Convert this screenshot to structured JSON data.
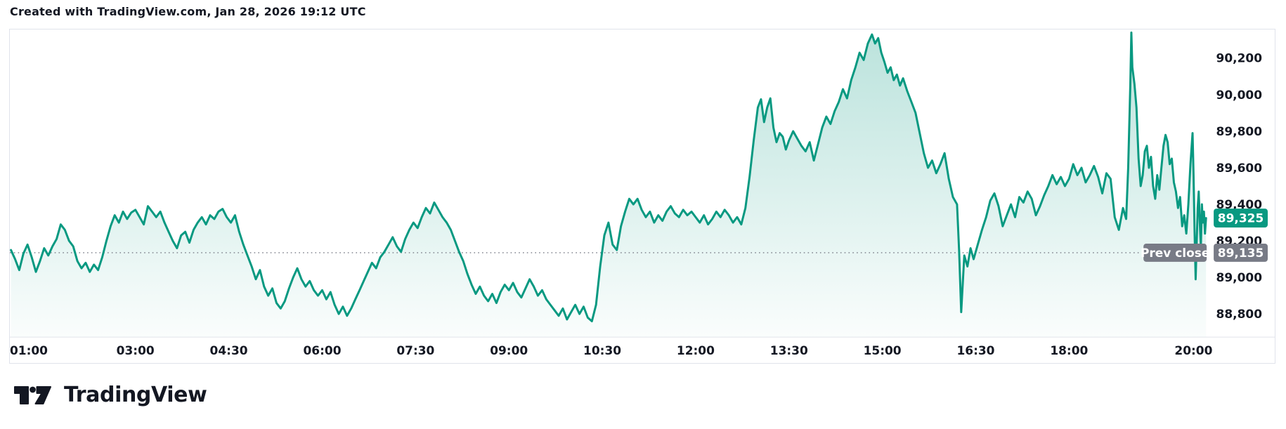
{
  "header": {
    "attribution": "Created with TradingView.com, Jan 28, 2026 19:12 UTC"
  },
  "footer": {
    "brand": "TradingView"
  },
  "colors": {
    "line": "#089981",
    "area_top": "rgba(8,153,129,0.28)",
    "area_bottom": "rgba(8,153,129,0.02)",
    "current_badge_bg": "#089981",
    "prev_close_badge_bg": "#787b86",
    "axis_text": "#131722",
    "border": "#e0e3eb",
    "dotted_line": "#787b86",
    "badge_text": "#ffffff"
  },
  "chart_data": {
    "type": "area",
    "title": "",
    "xlabel": "",
    "ylabel": "",
    "time_range": "01:00 - 20:12",
    "ylim": [
      88676,
      90357
    ],
    "grid": false,
    "legend": "none",
    "x_ticks": [
      "01:00",
      "03:00",
      "04:30",
      "06:00",
      "07:30",
      "09:00",
      "10:30",
      "12:00",
      "13:30",
      "15:00",
      "16:30",
      "18:00",
      "20:00"
    ],
    "y_ticks": [
      {
        "value": 88800,
        "label": "88,800"
      },
      {
        "value": 89000,
        "label": "89,000"
      },
      {
        "value": 89200,
        "label": "89,200"
      },
      {
        "value": 89400,
        "label": "89,400"
      },
      {
        "value": 89600,
        "label": "89,600"
      },
      {
        "value": 89800,
        "label": "89,800"
      },
      {
        "value": 90000,
        "label": "90,000"
      },
      {
        "value": 90200,
        "label": "90,200"
      }
    ],
    "last_price": {
      "value": 89325,
      "label": "89,325"
    },
    "prev_close": {
      "value": 89135,
      "label": "89,135",
      "title": "Prev close"
    },
    "points": [
      [
        "01:00",
        89150
      ],
      [
        "01:04",
        89100
      ],
      [
        "01:08",
        89040
      ],
      [
        "01:12",
        89130
      ],
      [
        "01:16",
        89180
      ],
      [
        "01:20",
        89110
      ],
      [
        "01:24",
        89030
      ],
      [
        "01:28",
        89090
      ],
      [
        "01:32",
        89160
      ],
      [
        "01:36",
        89120
      ],
      [
        "01:40",
        89170
      ],
      [
        "01:44",
        89210
      ],
      [
        "01:48",
        89290
      ],
      [
        "01:52",
        89260
      ],
      [
        "01:56",
        89200
      ],
      [
        "02:00",
        89170
      ],
      [
        "02:04",
        89090
      ],
      [
        "02:08",
        89050
      ],
      [
        "02:12",
        89080
      ],
      [
        "02:16",
        89030
      ],
      [
        "02:20",
        89070
      ],
      [
        "02:24",
        89040
      ],
      [
        "02:28",
        89110
      ],
      [
        "02:32",
        89200
      ],
      [
        "02:36",
        89280
      ],
      [
        "02:40",
        89340
      ],
      [
        "02:44",
        89300
      ],
      [
        "02:48",
        89360
      ],
      [
        "02:52",
        89320
      ],
      [
        "02:56",
        89355
      ],
      [
        "03:00",
        89370
      ],
      [
        "03:04",
        89330
      ],
      [
        "03:08",
        89290
      ],
      [
        "03:12",
        89390
      ],
      [
        "03:16",
        89360
      ],
      [
        "03:20",
        89330
      ],
      [
        "03:24",
        89360
      ],
      [
        "03:28",
        89300
      ],
      [
        "03:32",
        89250
      ],
      [
        "03:36",
        89200
      ],
      [
        "03:40",
        89160
      ],
      [
        "03:44",
        89230
      ],
      [
        "03:48",
        89250
      ],
      [
        "03:52",
        89190
      ],
      [
        "03:56",
        89260
      ],
      [
        "04:00",
        89300
      ],
      [
        "04:04",
        89330
      ],
      [
        "04:08",
        89290
      ],
      [
        "04:12",
        89340
      ],
      [
        "04:16",
        89320
      ],
      [
        "04:20",
        89360
      ],
      [
        "04:24",
        89375
      ],
      [
        "04:28",
        89330
      ],
      [
        "04:32",
        89300
      ],
      [
        "04:36",
        89340
      ],
      [
        "04:40",
        89250
      ],
      [
        "04:44",
        89180
      ],
      [
        "04:48",
        89120
      ],
      [
        "04:52",
        89060
      ],
      [
        "04:56",
        88990
      ],
      [
        "05:00",
        89040
      ],
      [
        "05:04",
        88950
      ],
      [
        "05:08",
        88900
      ],
      [
        "05:12",
        88940
      ],
      [
        "05:16",
        88860
      ],
      [
        "05:20",
        88830
      ],
      [
        "05:24",
        88870
      ],
      [
        "05:28",
        88940
      ],
      [
        "05:32",
        89000
      ],
      [
        "05:36",
        89050
      ],
      [
        "05:40",
        88990
      ],
      [
        "05:44",
        88950
      ],
      [
        "05:48",
        88980
      ],
      [
        "05:52",
        88930
      ],
      [
        "05:56",
        88900
      ],
      [
        "06:00",
        88930
      ],
      [
        "06:04",
        88880
      ],
      [
        "06:08",
        88920
      ],
      [
        "06:12",
        88850
      ],
      [
        "06:16",
        88800
      ],
      [
        "06:20",
        88840
      ],
      [
        "06:24",
        88790
      ],
      [
        "06:28",
        88830
      ],
      [
        "06:32",
        88880
      ],
      [
        "06:36",
        88930
      ],
      [
        "06:40",
        88980
      ],
      [
        "06:44",
        89030
      ],
      [
        "06:48",
        89080
      ],
      [
        "06:52",
        89050
      ],
      [
        "06:56",
        89110
      ],
      [
        "07:00",
        89140
      ],
      [
        "07:04",
        89180
      ],
      [
        "07:08",
        89220
      ],
      [
        "07:12",
        89170
      ],
      [
        "07:16",
        89140
      ],
      [
        "07:20",
        89210
      ],
      [
        "07:24",
        89260
      ],
      [
        "07:28",
        89300
      ],
      [
        "07:32",
        89270
      ],
      [
        "07:36",
        89330
      ],
      [
        "07:40",
        89380
      ],
      [
        "07:44",
        89350
      ],
      [
        "07:48",
        89410
      ],
      [
        "07:52",
        89370
      ],
      [
        "07:56",
        89330
      ],
      [
        "08:00",
        89300
      ],
      [
        "08:04",
        89260
      ],
      [
        "08:08",
        89200
      ],
      [
        "08:12",
        89140
      ],
      [
        "08:16",
        89090
      ],
      [
        "08:20",
        89020
      ],
      [
        "08:24",
        88960
      ],
      [
        "08:28",
        88910
      ],
      [
        "08:32",
        88950
      ],
      [
        "08:36",
        88900
      ],
      [
        "08:40",
        88870
      ],
      [
        "08:44",
        88910
      ],
      [
        "08:48",
        88860
      ],
      [
        "08:52",
        88920
      ],
      [
        "08:56",
        88960
      ],
      [
        "09:00",
        88930
      ],
      [
        "09:04",
        88970
      ],
      [
        "09:08",
        88920
      ],
      [
        "09:12",
        88890
      ],
      [
        "09:16",
        88940
      ],
      [
        "09:20",
        88990
      ],
      [
        "09:24",
        88950
      ],
      [
        "09:28",
        88900
      ],
      [
        "09:32",
        88930
      ],
      [
        "09:36",
        88880
      ],
      [
        "09:40",
        88850
      ],
      [
        "09:44",
        88820
      ],
      [
        "09:48",
        88790
      ],
      [
        "09:52",
        88830
      ],
      [
        "09:56",
        88770
      ],
      [
        "10:00",
        88810
      ],
      [
        "10:04",
        88850
      ],
      [
        "10:08",
        88800
      ],
      [
        "10:12",
        88840
      ],
      [
        "10:16",
        88780
      ],
      [
        "10:20",
        88760
      ],
      [
        "10:24",
        88850
      ],
      [
        "10:28",
        89060
      ],
      [
        "10:32",
        89230
      ],
      [
        "10:36",
        89300
      ],
      [
        "10:40",
        89180
      ],
      [
        "10:44",
        89150
      ],
      [
        "10:48",
        89280
      ],
      [
        "10:52",
        89360
      ],
      [
        "10:56",
        89430
      ],
      [
        "11:00",
        89400
      ],
      [
        "11:04",
        89430
      ],
      [
        "11:08",
        89370
      ],
      [
        "11:12",
        89330
      ],
      [
        "11:16",
        89360
      ],
      [
        "11:20",
        89300
      ],
      [
        "11:24",
        89340
      ],
      [
        "11:28",
        89310
      ],
      [
        "11:32",
        89360
      ],
      [
        "11:36",
        89390
      ],
      [
        "11:40",
        89350
      ],
      [
        "11:44",
        89330
      ],
      [
        "11:48",
        89370
      ],
      [
        "11:52",
        89340
      ],
      [
        "11:56",
        89360
      ],
      [
        "12:00",
        89330
      ],
      [
        "12:04",
        89300
      ],
      [
        "12:08",
        89340
      ],
      [
        "12:12",
        89290
      ],
      [
        "12:16",
        89320
      ],
      [
        "12:20",
        89360
      ],
      [
        "12:24",
        89330
      ],
      [
        "12:28",
        89370
      ],
      [
        "12:32",
        89340
      ],
      [
        "12:36",
        89300
      ],
      [
        "12:40",
        89330
      ],
      [
        "12:44",
        89290
      ],
      [
        "12:48",
        89380
      ],
      [
        "12:52",
        89550
      ],
      [
        "12:56",
        89750
      ],
      [
        "13:00",
        89930
      ],
      [
        "13:03",
        89975
      ],
      [
        "13:06",
        89850
      ],
      [
        "13:09",
        89930
      ],
      [
        "13:12",
        89980
      ],
      [
        "13:15",
        89820
      ],
      [
        "13:18",
        89740
      ],
      [
        "13:21",
        89790
      ],
      [
        "13:24",
        89770
      ],
      [
        "13:27",
        89700
      ],
      [
        "13:30",
        89750
      ],
      [
        "13:34",
        89800
      ],
      [
        "13:38",
        89760
      ],
      [
        "13:42",
        89720
      ],
      [
        "13:46",
        89690
      ],
      [
        "13:50",
        89740
      ],
      [
        "13:54",
        89640
      ],
      [
        "13:58",
        89730
      ],
      [
        "14:02",
        89820
      ],
      [
        "14:06",
        89880
      ],
      [
        "14:10",
        89840
      ],
      [
        "14:14",
        89910
      ],
      [
        "14:18",
        89960
      ],
      [
        "14:22",
        90030
      ],
      [
        "14:26",
        89980
      ],
      [
        "14:30",
        90080
      ],
      [
        "14:34",
        90150
      ],
      [
        "14:38",
        90230
      ],
      [
        "14:42",
        90190
      ],
      [
        "14:46",
        90280
      ],
      [
        "14:50",
        90330
      ],
      [
        "14:53",
        90280
      ],
      [
        "14:56",
        90310
      ],
      [
        "14:59",
        90230
      ],
      [
        "15:02",
        90180
      ],
      [
        "15:05",
        90120
      ],
      [
        "15:08",
        90150
      ],
      [
        "15:11",
        90080
      ],
      [
        "15:14",
        90110
      ],
      [
        "15:17",
        90050
      ],
      [
        "15:20",
        90090
      ],
      [
        "15:24",
        90020
      ],
      [
        "15:28",
        89960
      ],
      [
        "15:32",
        89900
      ],
      [
        "15:36",
        89790
      ],
      [
        "15:40",
        89680
      ],
      [
        "15:44",
        89600
      ],
      [
        "15:48",
        89640
      ],
      [
        "15:52",
        89570
      ],
      [
        "15:56",
        89620
      ],
      [
        "16:00",
        89680
      ],
      [
        "16:04",
        89540
      ],
      [
        "16:08",
        89440
      ],
      [
        "16:12",
        89400
      ],
      [
        "16:14",
        89150
      ],
      [
        "16:16",
        88810
      ],
      [
        "16:19",
        89120
      ],
      [
        "16:22",
        89060
      ],
      [
        "16:25",
        89160
      ],
      [
        "16:28",
        89100
      ],
      [
        "16:32",
        89180
      ],
      [
        "16:36",
        89260
      ],
      [
        "16:40",
        89330
      ],
      [
        "16:44",
        89420
      ],
      [
        "16:48",
        89460
      ],
      [
        "16:52",
        89390
      ],
      [
        "16:56",
        89280
      ],
      [
        "17:00",
        89340
      ],
      [
        "17:04",
        89400
      ],
      [
        "17:08",
        89330
      ],
      [
        "17:12",
        89440
      ],
      [
        "17:16",
        89410
      ],
      [
        "17:20",
        89470
      ],
      [
        "17:24",
        89430
      ],
      [
        "17:28",
        89340
      ],
      [
        "17:32",
        89390
      ],
      [
        "17:36",
        89450
      ],
      [
        "17:40",
        89500
      ],
      [
        "17:44",
        89560
      ],
      [
        "17:48",
        89510
      ],
      [
        "17:52",
        89550
      ],
      [
        "17:56",
        89500
      ],
      [
        "18:00",
        89540
      ],
      [
        "18:04",
        89620
      ],
      [
        "18:08",
        89560
      ],
      [
        "18:12",
        89600
      ],
      [
        "18:16",
        89520
      ],
      [
        "18:20",
        89560
      ],
      [
        "18:24",
        89610
      ],
      [
        "18:28",
        89550
      ],
      [
        "18:32",
        89460
      ],
      [
        "18:36",
        89570
      ],
      [
        "18:40",
        89540
      ],
      [
        "18:44",
        89330
      ],
      [
        "18:48",
        89260
      ],
      [
        "18:52",
        89380
      ],
      [
        "18:55",
        89320
      ],
      [
        "18:57",
        89600
      ],
      [
        "18:59",
        90050
      ],
      [
        "19:00",
        90340
      ],
      [
        "19:01",
        90150
      ],
      [
        "19:03",
        90060
      ],
      [
        "19:05",
        89930
      ],
      [
        "19:07",
        89650
      ],
      [
        "19:09",
        89500
      ],
      [
        "19:11",
        89560
      ],
      [
        "19:13",
        89690
      ],
      [
        "19:15",
        89720
      ],
      [
        "19:17",
        89600
      ],
      [
        "19:19",
        89660
      ],
      [
        "19:21",
        89500
      ],
      [
        "19:23",
        89430
      ],
      [
        "19:25",
        89560
      ],
      [
        "19:27",
        89480
      ],
      [
        "19:29",
        89600
      ],
      [
        "19:31",
        89720
      ],
      [
        "19:33",
        89780
      ],
      [
        "19:35",
        89740
      ],
      [
        "19:37",
        89620
      ],
      [
        "19:39",
        89650
      ],
      [
        "19:41",
        89520
      ],
      [
        "19:43",
        89470
      ],
      [
        "19:45",
        89380
      ],
      [
        "19:47",
        89440
      ],
      [
        "19:49",
        89280
      ],
      [
        "19:51",
        89340
      ],
      [
        "19:53",
        89240
      ],
      [
        "19:55",
        89400
      ],
      [
        "19:57",
        89620
      ],
      [
        "19:59",
        89790
      ],
      [
        "20:00",
        89560
      ],
      [
        "20:01",
        89250
      ],
      [
        "20:02",
        88990
      ],
      [
        "20:04",
        89380
      ],
      [
        "20:05",
        89470
      ],
      [
        "20:06",
        89300
      ],
      [
        "20:07",
        89160
      ],
      [
        "20:08",
        89400
      ],
      [
        "20:09",
        89300
      ],
      [
        "20:10",
        89360
      ],
      [
        "20:11",
        89240
      ],
      [
        "20:12",
        89325
      ]
    ]
  }
}
